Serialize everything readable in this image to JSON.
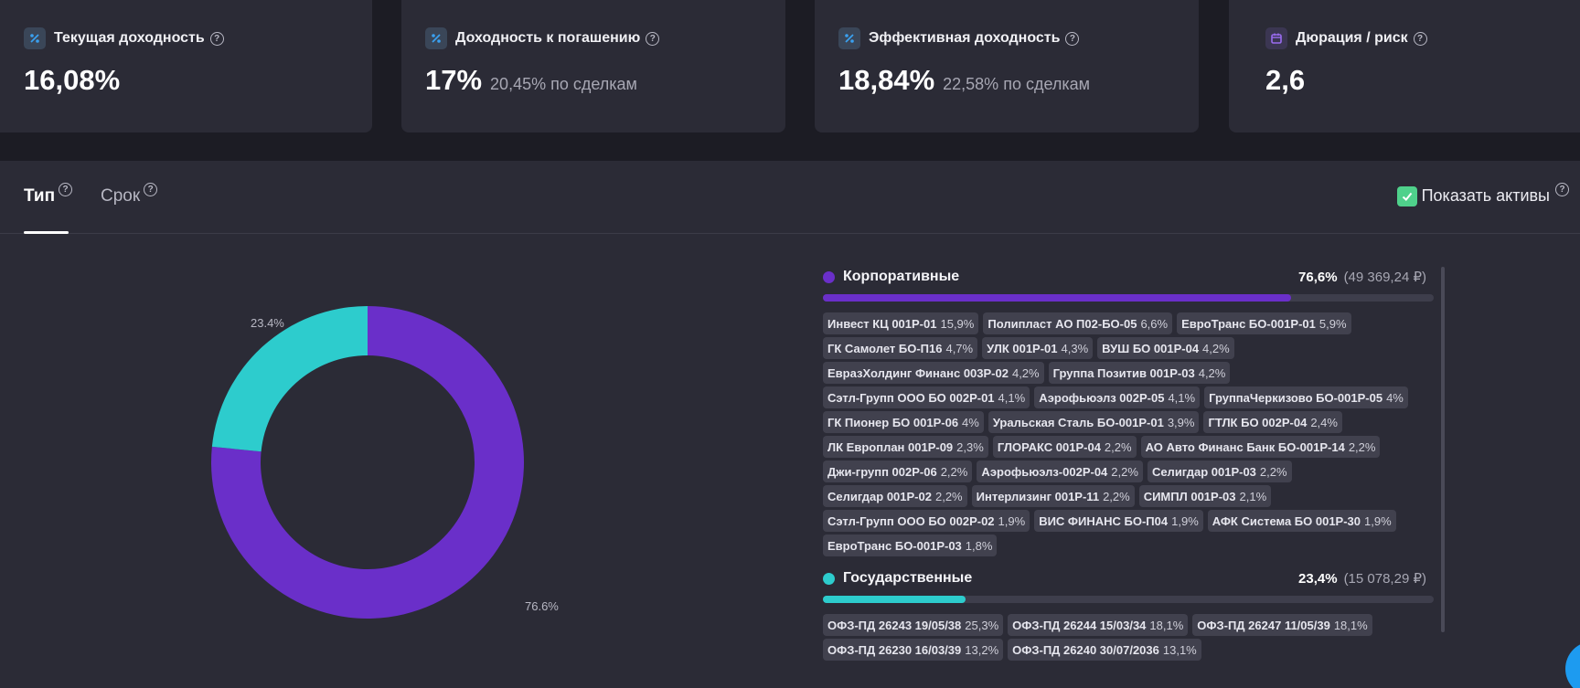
{
  "cards": [
    {
      "title": "Текущая доходность",
      "icon": "percent-icon",
      "value": "16,08%",
      "sub": ""
    },
    {
      "title": "Доходность к погашению",
      "icon": "percent-icon",
      "value": "17%",
      "sub": "20,45% по сделкам"
    },
    {
      "title": "Эффективная доходность",
      "icon": "percent-icon",
      "value": "18,84%",
      "sub": "22,58% по сделкам"
    },
    {
      "title": "Дюрация / риск",
      "icon": "calendar-icon",
      "value": "2,6",
      "sub": ""
    }
  ],
  "help_glyph": "?",
  "tabs": [
    {
      "label": "Тип",
      "active": true
    },
    {
      "label": "Срок",
      "active": false
    }
  ],
  "show_assets": {
    "label": "Показать активы",
    "checked": true
  },
  "chart_data": {
    "type": "pie",
    "categories": [
      "Корпоративные",
      "Государственные"
    ],
    "values": [
      76.6,
      23.4
    ],
    "labels": [
      "76.6%",
      "23.4%"
    ],
    "colors": [
      "#6a2fc9",
      "#2dcccd"
    ]
  },
  "groups": [
    {
      "name": "Корпоративные",
      "pct": "76,6%",
      "amount": "(49 369,24 ₽)",
      "share": 0.766,
      "color": "#6a2fc9",
      "items": [
        {
          "name": "Инвест КЦ 001Р-01",
          "pct": "15,9%"
        },
        {
          "name": "Полипласт АО П02-БО-05",
          "pct": "6,6%"
        },
        {
          "name": "ЕвроТранс БО-001Р-01",
          "pct": "5,9%"
        },
        {
          "name": "ГК Самолет БО-П16",
          "pct": "4,7%"
        },
        {
          "name": "УЛК 001Р-01",
          "pct": "4,3%"
        },
        {
          "name": "ВУШ БО 001Р-04",
          "pct": "4,2%"
        },
        {
          "name": "ЕвразХолдинг Финанс 003Р-02",
          "pct": "4,2%"
        },
        {
          "name": "Группа Позитив 001Р-03",
          "pct": "4,2%"
        },
        {
          "name": "Сэтл-Групп ООО БО 002Р-01",
          "pct": "4,1%"
        },
        {
          "name": "Аэрофьюэлз 002Р-05",
          "pct": "4,1%"
        },
        {
          "name": "ГруппаЧеркизово БО-001Р-05",
          "pct": "4%"
        },
        {
          "name": "ГК Пионер БО 001Р-06",
          "pct": "4%"
        },
        {
          "name": "Уральская Сталь БО-001Р-01",
          "pct": "3,9%"
        },
        {
          "name": "ГТЛК БО 002Р-04",
          "pct": "2,4%"
        },
        {
          "name": "ЛК Европлан 001Р-09",
          "pct": "2,3%"
        },
        {
          "name": "ГЛОРАКС 001Р-04",
          "pct": "2,2%"
        },
        {
          "name": "АО Авто Финанс Банк БО-001Р-14",
          "pct": "2,2%"
        },
        {
          "name": "Джи-групп 002Р-06",
          "pct": "2,2%"
        },
        {
          "name": "Аэрофьюэлз-002Р-04",
          "pct": "2,2%"
        },
        {
          "name": "Селигдар 001Р-03",
          "pct": "2,2%"
        },
        {
          "name": "Селигдар 001Р-02",
          "pct": "2,2%"
        },
        {
          "name": "Интерлизинг 001Р-11",
          "pct": "2,2%"
        },
        {
          "name": "СИМПЛ 001Р-03",
          "pct": "2,1%"
        },
        {
          "name": "Сэтл-Групп ООО БО 002Р-02",
          "pct": "1,9%"
        },
        {
          "name": "ВИС ФИНАНС БО-П04",
          "pct": "1,9%"
        },
        {
          "name": "АФК Система БО 001Р-30",
          "pct": "1,9%"
        },
        {
          "name": "ЕвроТранс БО-001Р-03",
          "pct": "1,8%"
        }
      ]
    },
    {
      "name": "Государственные",
      "pct": "23,4%",
      "amount": "(15 078,29 ₽)",
      "share": 0.234,
      "color": "#2dcccd",
      "items": [
        {
          "name": "ОФЗ-ПД 26243 19/05/38",
          "pct": "25,3%"
        },
        {
          "name": "ОФЗ-ПД 26244 15/03/34",
          "pct": "18,1%"
        },
        {
          "name": "ОФЗ-ПД 26247 11/05/39",
          "pct": "18,1%"
        },
        {
          "name": "ОФЗ-ПД 26230 16/03/39",
          "pct": "13,2%"
        },
        {
          "name": "ОФЗ-ПД 26240 30/07/2036",
          "pct": "13,1%"
        }
      ]
    }
  ]
}
